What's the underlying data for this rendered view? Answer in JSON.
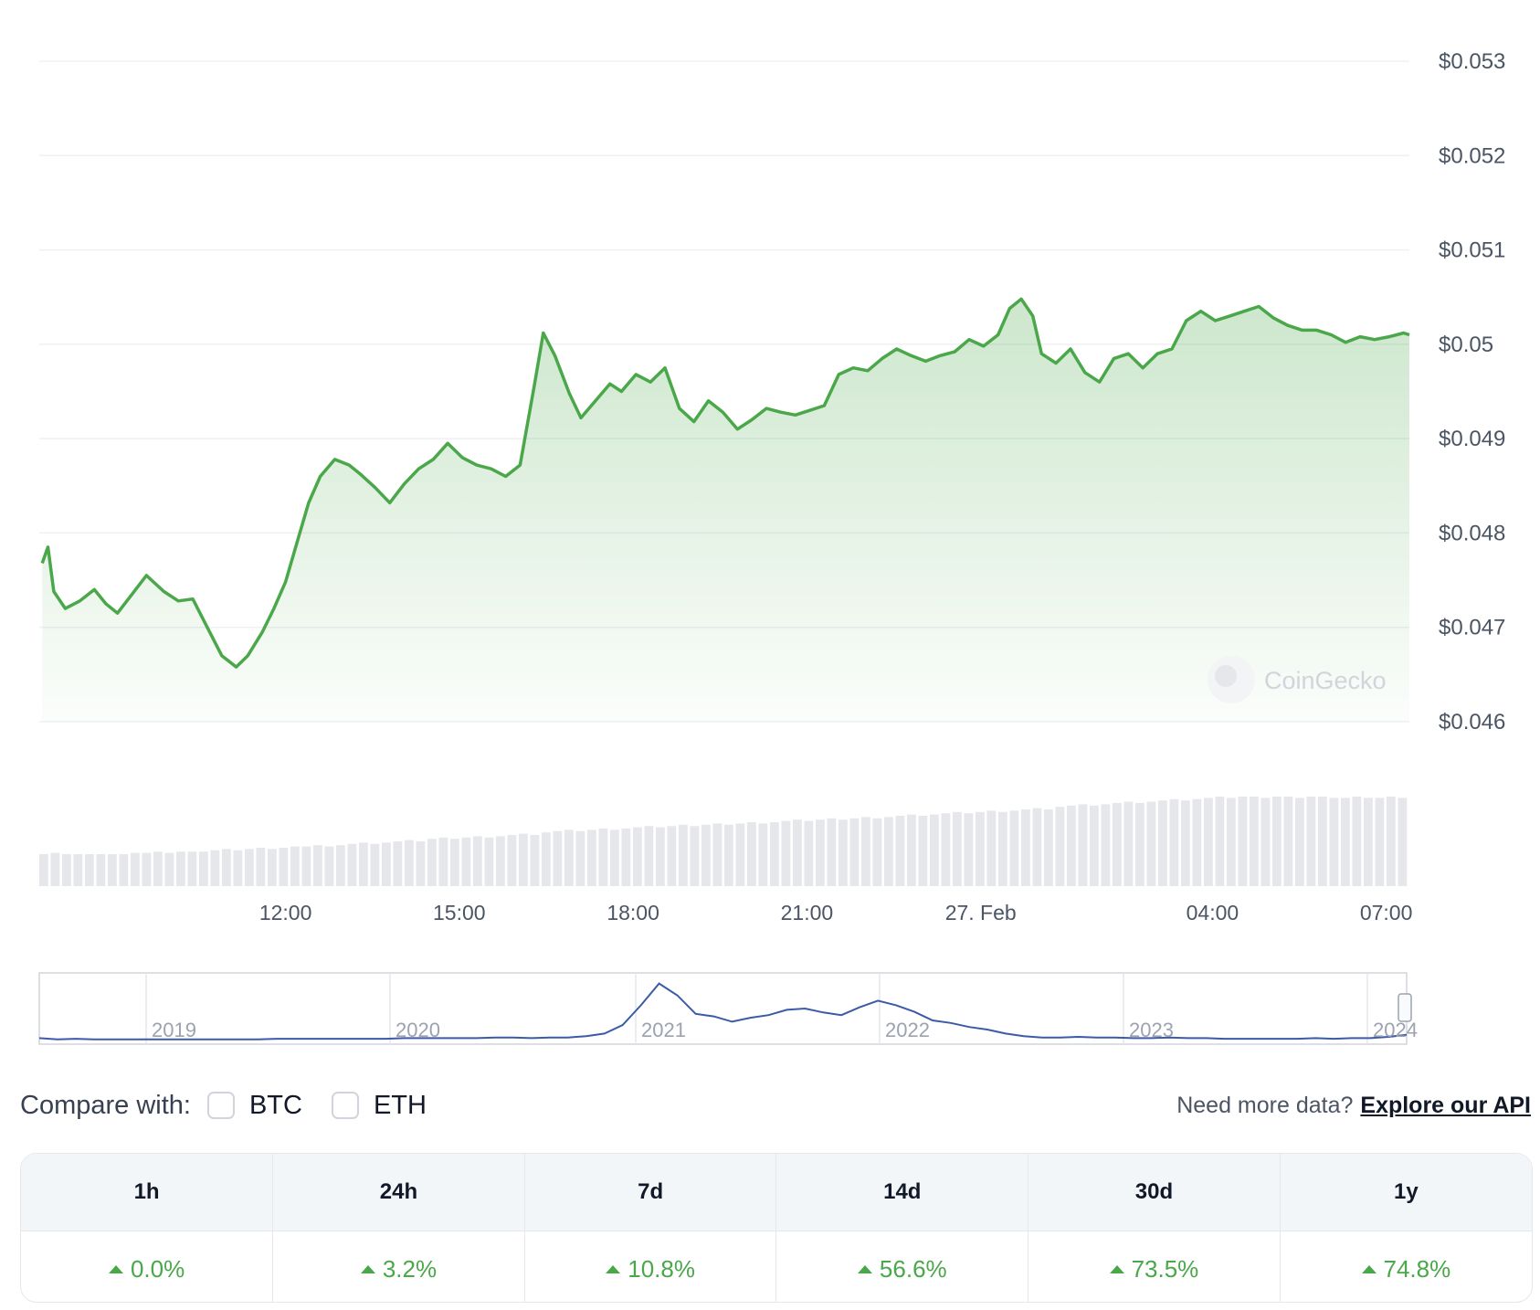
{
  "chart_data": [
    {
      "type": "line",
      "title": "",
      "xlabel": "",
      "ylabel": "",
      "x_tick_labels": [
        "12:00",
        "15:00",
        "18:00",
        "21:00",
        "27. Feb",
        "04:00",
        "07:00"
      ],
      "y_tick_labels": [
        "$0.053",
        "$0.052",
        "$0.051",
        "$0.05",
        "$0.049",
        "$0.048",
        "$0.047",
        "$0.046"
      ],
      "ylim": [
        0.046,
        0.053
      ],
      "x_range_hours": [
        -4.25,
        19.4
      ],
      "x_unit": "hours from 12:00 (26 Feb)",
      "series": [
        {
          "color": "#4aa74a",
          "points": [
            [
              -4.2,
              0.04768
            ],
            [
              -4.1,
              0.04785
            ],
            [
              -4.0,
              0.04738
            ],
            [
              -3.8,
              0.0472
            ],
            [
              -3.55,
              0.04728
            ],
            [
              -3.3,
              0.0474
            ],
            [
              -3.1,
              0.04725
            ],
            [
              -2.9,
              0.04715
            ],
            [
              -2.65,
              0.04735
            ],
            [
              -2.4,
              0.04755
            ],
            [
              -2.1,
              0.04738
            ],
            [
              -1.85,
              0.04728
            ],
            [
              -1.6,
              0.0473
            ],
            [
              -1.35,
              0.047
            ],
            [
              -1.1,
              0.0467
            ],
            [
              -0.85,
              0.04658
            ],
            [
              -0.65,
              0.0467
            ],
            [
              -0.4,
              0.04695
            ],
            [
              -0.2,
              0.0472
            ],
            [
              0.0,
              0.04748
            ],
            [
              0.2,
              0.0479
            ],
            [
              0.4,
              0.04832
            ],
            [
              0.6,
              0.0486
            ],
            [
              0.85,
              0.04878
            ],
            [
              1.1,
              0.04872
            ],
            [
              1.3,
              0.04862
            ],
            [
              1.55,
              0.04848
            ],
            [
              1.8,
              0.04832
            ],
            [
              2.05,
              0.04852
            ],
            [
              2.3,
              0.04868
            ],
            [
              2.55,
              0.04878
            ],
            [
              2.8,
              0.04895
            ],
            [
              3.05,
              0.0488
            ],
            [
              3.3,
              0.04872
            ],
            [
              3.55,
              0.04868
            ],
            [
              3.8,
              0.0486
            ],
            [
              4.05,
              0.04872
            ],
            [
              4.3,
              0.04958
            ],
            [
              4.45,
              0.05012
            ],
            [
              4.65,
              0.04988
            ],
            [
              4.9,
              0.04948
            ],
            [
              5.1,
              0.04922
            ],
            [
              5.35,
              0.0494
            ],
            [
              5.6,
              0.04958
            ],
            [
              5.8,
              0.0495
            ],
            [
              6.05,
              0.04968
            ],
            [
              6.3,
              0.0496
            ],
            [
              6.55,
              0.04975
            ],
            [
              6.8,
              0.04932
            ],
            [
              7.05,
              0.04918
            ],
            [
              7.3,
              0.0494
            ],
            [
              7.55,
              0.04928
            ],
            [
              7.8,
              0.0491
            ],
            [
              8.05,
              0.0492
            ],
            [
              8.3,
              0.04932
            ],
            [
              8.55,
              0.04928
            ],
            [
              8.8,
              0.04925
            ],
            [
              9.05,
              0.0493
            ],
            [
              9.3,
              0.04935
            ],
            [
              9.55,
              0.04968
            ],
            [
              9.8,
              0.04975
            ],
            [
              10.05,
              0.04972
            ],
            [
              10.3,
              0.04985
            ],
            [
              10.55,
              0.04995
            ],
            [
              10.8,
              0.04988
            ],
            [
              11.05,
              0.04982
            ],
            [
              11.3,
              0.04988
            ],
            [
              11.55,
              0.04992
            ],
            [
              11.8,
              0.05005
            ],
            [
              12.05,
              0.04998
            ],
            [
              12.3,
              0.0501
            ],
            [
              12.5,
              0.05038
            ],
            [
              12.7,
              0.05048
            ],
            [
              12.9,
              0.0503
            ],
            [
              13.05,
              0.0499
            ],
            [
              13.3,
              0.0498
            ],
            [
              13.55,
              0.04995
            ],
            [
              13.8,
              0.0497
            ],
            [
              14.05,
              0.0496
            ],
            [
              14.3,
              0.04985
            ],
            [
              14.55,
              0.0499
            ],
            [
              14.8,
              0.04975
            ],
            [
              15.05,
              0.0499
            ],
            [
              15.3,
              0.04995
            ],
            [
              15.55,
              0.05025
            ],
            [
              15.8,
              0.05035
            ],
            [
              16.05,
              0.05025
            ],
            [
              16.3,
              0.0503
            ],
            [
              16.55,
              0.05035
            ],
            [
              16.8,
              0.0504
            ],
            [
              17.05,
              0.05028
            ],
            [
              17.3,
              0.0502
            ],
            [
              17.55,
              0.05015
            ],
            [
              17.8,
              0.05015
            ],
            [
              18.05,
              0.0501
            ],
            [
              18.3,
              0.05002
            ],
            [
              18.55,
              0.05008
            ],
            [
              18.8,
              0.05005
            ],
            [
              19.05,
              0.05008
            ],
            [
              19.3,
              0.05012
            ],
            [
              19.4,
              0.0501
            ]
          ]
        }
      ]
    },
    {
      "type": "bar",
      "title": "",
      "xlabel": "",
      "ylabel": "",
      "color": "#e5e7eb",
      "relative_values": [
        0.25,
        0.26,
        0.25,
        0.25,
        0.25,
        0.25,
        0.25,
        0.25,
        0.26,
        0.26,
        0.27,
        0.26,
        0.27,
        0.27,
        0.27,
        0.28,
        0.29,
        0.28,
        0.29,
        0.3,
        0.29,
        0.3,
        0.31,
        0.31,
        0.32,
        0.31,
        0.32,
        0.33,
        0.34,
        0.33,
        0.34,
        0.35,
        0.36,
        0.35,
        0.37,
        0.38,
        0.37,
        0.38,
        0.39,
        0.38,
        0.39,
        0.4,
        0.41,
        0.4,
        0.42,
        0.43,
        0.44,
        0.43,
        0.44,
        0.45,
        0.44,
        0.45,
        0.46,
        0.47,
        0.46,
        0.47,
        0.48,
        0.47,
        0.48,
        0.49,
        0.48,
        0.49,
        0.5,
        0.49,
        0.5,
        0.51,
        0.52,
        0.51,
        0.52,
        0.53,
        0.52,
        0.53,
        0.54,
        0.53,
        0.54,
        0.55,
        0.56,
        0.55,
        0.56,
        0.57,
        0.58,
        0.57,
        0.58,
        0.59,
        0.58,
        0.59,
        0.6,
        0.61,
        0.6,
        0.62,
        0.63,
        0.64,
        0.63,
        0.64,
        0.65,
        0.66,
        0.65,
        0.66,
        0.67,
        0.68,
        0.67,
        0.68,
        0.69,
        0.7,
        0.69,
        0.7,
        0.7,
        0.69,
        0.7,
        0.7,
        0.69,
        0.7,
        0.7,
        0.69,
        0.69,
        0.7,
        0.69,
        0.69,
        0.7,
        0.69
      ]
    },
    {
      "type": "area",
      "title": "",
      "x_tick_labels": [
        "2019",
        "2020",
        "2021",
        "2022",
        "2023",
        "2024"
      ],
      "color": "#3b5ba8",
      "relative_values": [
        0.05,
        0.03,
        0.04,
        0.03,
        0.03,
        0.03,
        0.03,
        0.03,
        0.03,
        0.03,
        0.03,
        0.03,
        0.03,
        0.04,
        0.04,
        0.04,
        0.04,
        0.04,
        0.04,
        0.04,
        0.05,
        0.05,
        0.05,
        0.05,
        0.05,
        0.06,
        0.06,
        0.05,
        0.06,
        0.06,
        0.08,
        0.12,
        0.25,
        0.55,
        0.88,
        0.7,
        0.42,
        0.38,
        0.3,
        0.36,
        0.4,
        0.48,
        0.5,
        0.44,
        0.4,
        0.52,
        0.62,
        0.55,
        0.45,
        0.32,
        0.28,
        0.22,
        0.18,
        0.12,
        0.08,
        0.06,
        0.06,
        0.07,
        0.06,
        0.06,
        0.05,
        0.05,
        0.06,
        0.05,
        0.05,
        0.04,
        0.04,
        0.04,
        0.04,
        0.04,
        0.05,
        0.04,
        0.05,
        0.05,
        0.07,
        0.1
      ]
    }
  ],
  "watermark": "CoinGecko",
  "compare": {
    "label": "Compare with:",
    "options": [
      "BTC",
      "ETH"
    ]
  },
  "api": {
    "text": "Need more data?",
    "link": "Explore our API"
  },
  "performance": {
    "periods": [
      "1h",
      "24h",
      "7d",
      "14d",
      "30d",
      "1y"
    ],
    "values": [
      "0.0%",
      "3.2%",
      "10.8%",
      "56.6%",
      "73.5%",
      "74.8%"
    ],
    "color": "#4aa74a"
  }
}
